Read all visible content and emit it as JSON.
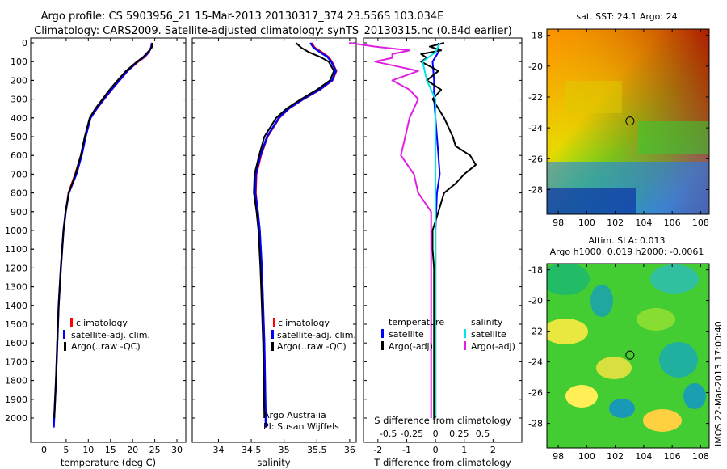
{
  "header": {
    "line1": "Argo profile: CS 5903956_21 15-Mar-2013 20130317_374 23.556S 103.034E",
    "line2": "Climatology: CARS2009. Satellite-adjusted climatology: synTS_20130315.nc (0.84d earlier)"
  },
  "depth_axis": {
    "ticks": [
      "0",
      "100",
      "200",
      "300",
      "400",
      "500",
      "600",
      "700",
      "800",
      "900",
      "1000",
      "1100",
      "1200",
      "1300",
      "1400",
      "1500",
      "1600",
      "1700",
      "1800",
      "1900",
      "2000"
    ],
    "range": [
      0,
      2070
    ]
  },
  "colors": {
    "climatology": "#ff0000",
    "satellite": "#0000ff",
    "argo": "#000000",
    "sal_satellite": "#00e5e5",
    "sal_argo": "#e020e0"
  },
  "legend": {
    "climatology": "climatology",
    "satellite": "satellite-adj. clim.",
    "argo": "Argo(..raw -QC)"
  },
  "diff_legend": {
    "temp_head": "temperature",
    "sal_head": "salinity",
    "satellite": "satellite",
    "argo": "Argo(-adj)"
  },
  "notes": {
    "program": "Argo Australia",
    "pi": "PI: Susan Wijffels"
  },
  "map_top": {
    "title": "sat. SST: 24.1 Argo: 24",
    "yticks": [
      "-18",
      "-20",
      "-22",
      "-24",
      "-26",
      "-28"
    ],
    "xticks": [
      "98",
      "100",
      "102",
      "104",
      "106",
      "108"
    ],
    "float_lon": 103.034,
    "float_lat": -23.556
  },
  "map_bottom": {
    "title1": "Altim. SLA: 0.013",
    "title2": "Argo h1000: 0.019 h2000: -0.0061",
    "yticks": [
      "-18",
      "-20",
      "-22",
      "-24",
      "-26",
      "-28"
    ],
    "xticks": [
      "98",
      "100",
      "102",
      "104",
      "106",
      "108"
    ],
    "stamp": "IMOS 22-Mar-2013 17:00:40"
  },
  "chart_data": [
    {
      "type": "line",
      "id": "temperature",
      "xlabel": "temperature (deg C)",
      "xticks": [
        "0",
        "5",
        "10",
        "15",
        "20",
        "25",
        "30"
      ],
      "xlim": [
        -3,
        32
      ],
      "ylim": [
        0,
        2070
      ],
      "series": [
        {
          "name": "climatology",
          "depth": [
            0,
            25,
            50,
            75,
            100,
            150,
            200,
            250,
            300,
            350,
            400,
            500,
            600,
            700,
            800,
            900,
            1000,
            1200,
            1400,
            1600,
            1800,
            2000,
            2050
          ],
          "values": [
            24.3,
            24.1,
            23.7,
            22.8,
            21.3,
            18.9,
            17.1,
            15.3,
            13.6,
            12.0,
            10.5,
            9.3,
            8.3,
            7.0,
            5.5,
            4.9,
            4.4,
            3.8,
            3.3,
            3.0,
            2.7,
            2.3,
            2.2
          ]
        },
        {
          "name": "satellite-adj. clim.",
          "depth": [
            0,
            25,
            50,
            75,
            100,
            150,
            200,
            250,
            300,
            350,
            400,
            500,
            600,
            700,
            800,
            900,
            1000,
            1200,
            1400,
            1600,
            1800,
            2000,
            2050
          ],
          "values": [
            24.4,
            24.2,
            23.6,
            22.6,
            21.1,
            18.8,
            17.0,
            15.2,
            13.5,
            11.9,
            10.5,
            9.4,
            8.5,
            7.3,
            5.6,
            4.9,
            4.4,
            3.8,
            3.3,
            3.0,
            2.7,
            2.3,
            2.2
          ]
        },
        {
          "name": "Argo(..raw -QC)",
          "depth": [
            0,
            25,
            50,
            75,
            100,
            150,
            200,
            250,
            300,
            350,
            400,
            500,
            600,
            700,
            800,
            900,
            1000,
            1200,
            1400,
            1600,
            1800,
            2000
          ],
          "values": [
            24.5,
            24.3,
            23.4,
            22.4,
            21.0,
            18.5,
            16.6,
            14.8,
            13.2,
            11.6,
            10.3,
            9.2,
            8.3,
            7.1,
            5.6,
            4.9,
            4.4,
            3.8,
            3.3,
            3.0,
            2.7,
            2.3
          ]
        }
      ]
    },
    {
      "type": "line",
      "id": "salinity",
      "xlabel": "salinity",
      "xticks": [
        "34",
        "34.5",
        "35",
        "35.5",
        "36"
      ],
      "xlim": [
        33.6,
        36.1
      ],
      "ylim": [
        0,
        2070
      ],
      "series": [
        {
          "name": "climatology",
          "depth": [
            0,
            25,
            50,
            75,
            100,
            150,
            200,
            250,
            300,
            350,
            400,
            500,
            600,
            700,
            800,
            900,
            1000,
            1200,
            1400,
            1600,
            1800,
            2000,
            2050
          ],
          "values": [
            35.42,
            35.47,
            35.58,
            35.68,
            35.73,
            35.8,
            35.74,
            35.55,
            35.3,
            35.08,
            34.93,
            34.75,
            34.65,
            34.58,
            34.57,
            34.6,
            34.63,
            34.66,
            34.68,
            34.7,
            34.71,
            34.72,
            34.72
          ]
        },
        {
          "name": "satellite-adj. clim.",
          "depth": [
            0,
            25,
            50,
            75,
            100,
            150,
            200,
            250,
            300,
            350,
            400,
            500,
            600,
            700,
            800,
            900,
            1000,
            1200,
            1400,
            1600,
            1800,
            2000,
            2050
          ],
          "values": [
            35.4,
            35.45,
            35.55,
            35.66,
            35.72,
            35.79,
            35.73,
            35.54,
            35.29,
            35.07,
            34.92,
            34.74,
            34.64,
            34.57,
            34.56,
            34.6,
            34.63,
            34.66,
            34.68,
            34.7,
            34.71,
            34.72,
            34.72
          ]
        },
        {
          "name": "Argo(..raw -QC)",
          "depth": [
            0,
            25,
            50,
            75,
            100,
            150,
            200,
            250,
            300,
            350,
            400,
            500,
            600,
            700,
            800,
            900,
            1000,
            1200,
            1400,
            1600,
            1800,
            2000
          ],
          "values": [
            35.18,
            35.26,
            35.38,
            35.55,
            35.68,
            35.76,
            35.7,
            35.5,
            35.26,
            35.04,
            34.88,
            34.7,
            34.62,
            34.55,
            34.54,
            34.58,
            34.61,
            34.64,
            34.66,
            34.68,
            34.69,
            34.7
          ]
        }
      ]
    },
    {
      "type": "line",
      "id": "difference",
      "xlabel": "T difference from climatology",
      "xlabel_top": "S difference from climatology",
      "xticks": [
        "-2",
        "-1",
        "0",
        "1",
        "2"
      ],
      "xticks_top": [
        "-0.5",
        "-0.25",
        "0",
        "0.25",
        "0.5"
      ],
      "xlim": [
        -2.5,
        3.0
      ],
      "ylim": [
        0,
        2070
      ],
      "series": [
        {
          "name": "temperature satellite",
          "depth": [
            0,
            50,
            100,
            200,
            300,
            400,
            500,
            600,
            700,
            800,
            1000,
            1500,
            2000
          ],
          "values": [
            0.1,
            0.1,
            -0.1,
            -0.05,
            -0.05,
            0.0,
            0.05,
            0.1,
            0.15,
            0.05,
            0.0,
            0.0,
            0.0
          ]
        },
        {
          "name": "temperature Argo(-adj)",
          "depth": [
            0,
            20,
            40,
            60,
            80,
            100,
            150,
            200,
            250,
            300,
            400,
            500,
            550,
            600,
            650,
            700,
            750,
            800,
            900,
            1000,
            1100,
            1200,
            1400,
            1600,
            1800,
            2000
          ],
          "values": [
            0.3,
            -0.2,
            0.2,
            -0.5,
            -0.3,
            -0.5,
            0.1,
            -0.3,
            0.2,
            -0.1,
            0.3,
            0.6,
            0.7,
            1.2,
            1.4,
            1.0,
            0.7,
            0.3,
            0.1,
            -0.1,
            -0.1,
            -0.05,
            -0.05,
            -0.05,
            -0.05,
            -0.05
          ]
        },
        {
          "name": "salinity satellite",
          "depth": [
            0,
            50,
            100,
            200,
            300,
            400,
            500,
            600,
            700,
            800,
            1000,
            1500,
            2000
          ],
          "values": [
            0.05,
            0.0,
            -0.15,
            -0.1,
            0.0,
            0.0,
            0.0,
            0.0,
            0.0,
            0.0,
            0.0,
            0.0,
            0.0
          ]
        },
        {
          "name": "salinity Argo(-adj)",
          "depth": [
            0,
            20,
            40,
            60,
            80,
            100,
            150,
            200,
            250,
            300,
            400,
            500,
            600,
            700,
            800,
            900,
            1000,
            1200,
            1400,
            1600,
            1800,
            2000
          ],
          "values": [
            -1.0,
            -0.7,
            -0.3,
            -0.5,
            -0.5,
            -0.7,
            -0.2,
            -0.5,
            -0.3,
            -0.2,
            -0.3,
            -0.35,
            -0.4,
            -0.25,
            -0.2,
            -0.05,
            -0.05,
            -0.05,
            -0.05,
            -0.05,
            -0.05,
            -0.05
          ]
        }
      ]
    }
  ]
}
